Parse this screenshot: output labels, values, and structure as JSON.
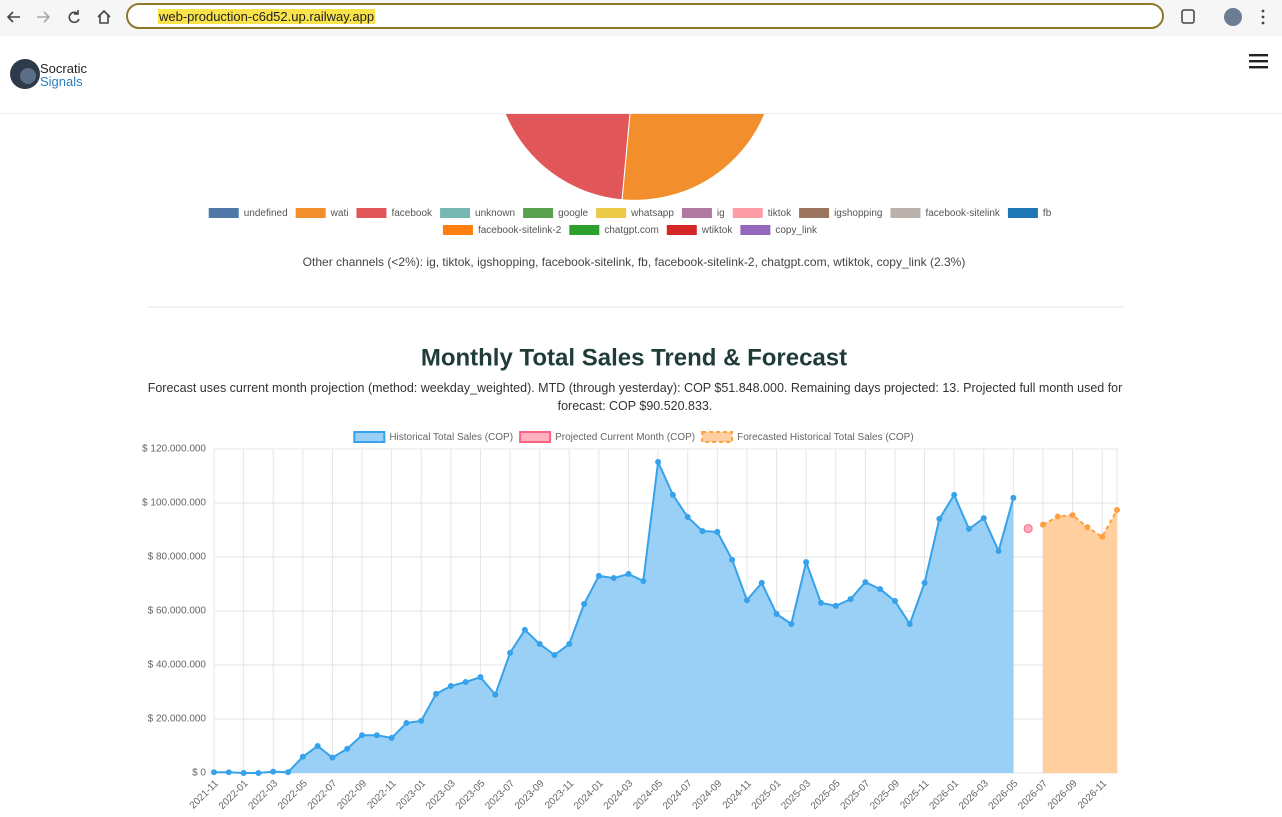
{
  "browser": {
    "url": "web-production-c6d52.up.railway.app"
  },
  "header": {
    "brand_top": "Socratic",
    "brand_bottom": "Signals"
  },
  "channel_legend": [
    {
      "name": "undefined",
      "color": "#4e79a7"
    },
    {
      "name": "wati",
      "color": "#f28e2b"
    },
    {
      "name": "facebook",
      "color": "#e15759"
    },
    {
      "name": "unknown",
      "color": "#76b7b2"
    },
    {
      "name": "google",
      "color": "#59a14f"
    },
    {
      "name": "whatsapp",
      "color": "#edc948"
    },
    {
      "name": "ig",
      "color": "#b07aa1"
    },
    {
      "name": "tiktok",
      "color": "#ff9da7"
    },
    {
      "name": "igshopping",
      "color": "#9c755f"
    },
    {
      "name": "facebook-sitelink",
      "color": "#bab0ac"
    },
    {
      "name": "fb",
      "color": "#1f77b4"
    },
    {
      "name": "facebook-sitelink-2",
      "color": "#ff7f0e"
    },
    {
      "name": "chatgpt.com",
      "color": "#2ca02c"
    },
    {
      "name": "wtiktok",
      "color": "#d62728"
    },
    {
      "name": "copy_link",
      "color": "#9467bd"
    }
  ],
  "channel_note": "Other channels (<2%): ig, tiktok, igshopping, facebook-sitelink, fb, facebook-sitelink-2, chatgpt.com, wtiktok, copy_link (2.3%)",
  "chart_data": {
    "type": "line",
    "title": "Monthly Total Sales Trend & Forecast",
    "subtitle": "Forecast uses current month projection (method: weekday_weighted). MTD (through yesterday): COP $51.848.000. Remaining days projected: 13. Projected full month used for forecast: COP $90.520.833.",
    "categories": [
      "2021-11",
      null,
      "2022-01",
      null,
      "2022-03",
      null,
      "2022-05",
      null,
      "2022-07",
      null,
      "2022-09",
      null,
      "2022-11",
      null,
      "2023-01",
      null,
      "2023-03",
      null,
      "2023-05",
      null,
      "2023-07",
      null,
      "2023-09",
      null,
      "2023-11",
      null,
      "2024-01",
      null,
      "2024-03",
      null,
      "2024-05",
      null,
      "2024-07",
      null,
      "2024-09",
      null,
      "2024-11",
      null,
      "2025-01",
      null,
      "2025-03",
      null,
      "2025-05",
      null,
      "2025-07",
      null,
      "2025-09",
      null,
      "2025-11",
      null,
      "2026-01",
      null,
      "2026-03",
      null,
      "2026-05",
      null,
      "2026-07",
      null,
      "2026-09",
      null,
      "2026-11",
      null
    ],
    "series": [
      {
        "name": "Historical Total Sales (COP)",
        "color": "#36a2eb",
        "fill": "#9ad0f5",
        "dashed": false,
        "values": [
          300000,
          300000,
          0,
          0,
          500000,
          300000,
          6000000,
          10000000,
          5700000,
          9000000,
          14000000,
          14000000,
          13000000,
          18500000,
          19300000,
          29300000,
          32200000,
          33700000,
          35500000,
          29000000,
          44500000,
          53000000,
          47800000,
          43700000,
          47800000,
          62600000,
          73000000,
          72200000,
          73700000,
          71100000,
          115200000,
          103000000,
          94800000,
          89600000,
          89300000,
          79000000,
          64000000,
          70400000,
          58900000,
          55200000,
          78100000,
          63000000,
          61900000,
          64400000,
          70700000,
          68100000,
          63700000,
          55200000,
          70400000,
          94100000,
          103000000,
          90400000,
          94400000,
          82200000,
          101900000,
          null,
          null,
          null,
          null,
          null,
          null,
          null
        ]
      },
      {
        "name": "Projected Current Month (COP)",
        "color": "#ff6384",
        "fill": "#ffb1c1",
        "dashed": false,
        "values": [
          null,
          null,
          null,
          null,
          null,
          null,
          null,
          null,
          null,
          null,
          null,
          null,
          null,
          null,
          null,
          null,
          null,
          null,
          null,
          null,
          null,
          null,
          null,
          null,
          null,
          null,
          null,
          null,
          null,
          null,
          null,
          null,
          null,
          null,
          null,
          null,
          null,
          null,
          null,
          null,
          null,
          null,
          null,
          null,
          null,
          null,
          null,
          null,
          null,
          null,
          null,
          null,
          null,
          null,
          null,
          90520833,
          null,
          null,
          null,
          null,
          null,
          null
        ]
      },
      {
        "name": "Forecasted Historical Total Sales (COP)",
        "color": "#ff9f40",
        "fill": "#ffcf9f",
        "dashed": true,
        "values": [
          null,
          null,
          null,
          null,
          null,
          null,
          null,
          null,
          null,
          null,
          null,
          null,
          null,
          null,
          null,
          null,
          null,
          null,
          null,
          null,
          null,
          null,
          null,
          null,
          null,
          null,
          null,
          null,
          null,
          null,
          null,
          null,
          null,
          null,
          null,
          null,
          null,
          null,
          null,
          null,
          null,
          null,
          null,
          null,
          null,
          null,
          null,
          null,
          null,
          null,
          null,
          null,
          null,
          null,
          null,
          null,
          92000000,
          95000000,
          95500000,
          91000000,
          87500000,
          97400000
        ]
      }
    ],
    "ylim": [
      0,
      120000000
    ],
    "yticks": [
      {
        "value": 0,
        "label": "$ 0"
      },
      {
        "value": 20000000,
        "label": "$ 20.000.000"
      },
      {
        "value": 40000000,
        "label": "$ 40.000.000"
      },
      {
        "value": 60000000,
        "label": "$ 60.000.000"
      },
      {
        "value": 80000000,
        "label": "$ 80.000.000"
      },
      {
        "value": 100000000,
        "label": "$ 100.000.000"
      },
      {
        "value": 120000000,
        "label": "$ 120.000.000"
      }
    ],
    "grid": true,
    "legend_position": "top"
  }
}
